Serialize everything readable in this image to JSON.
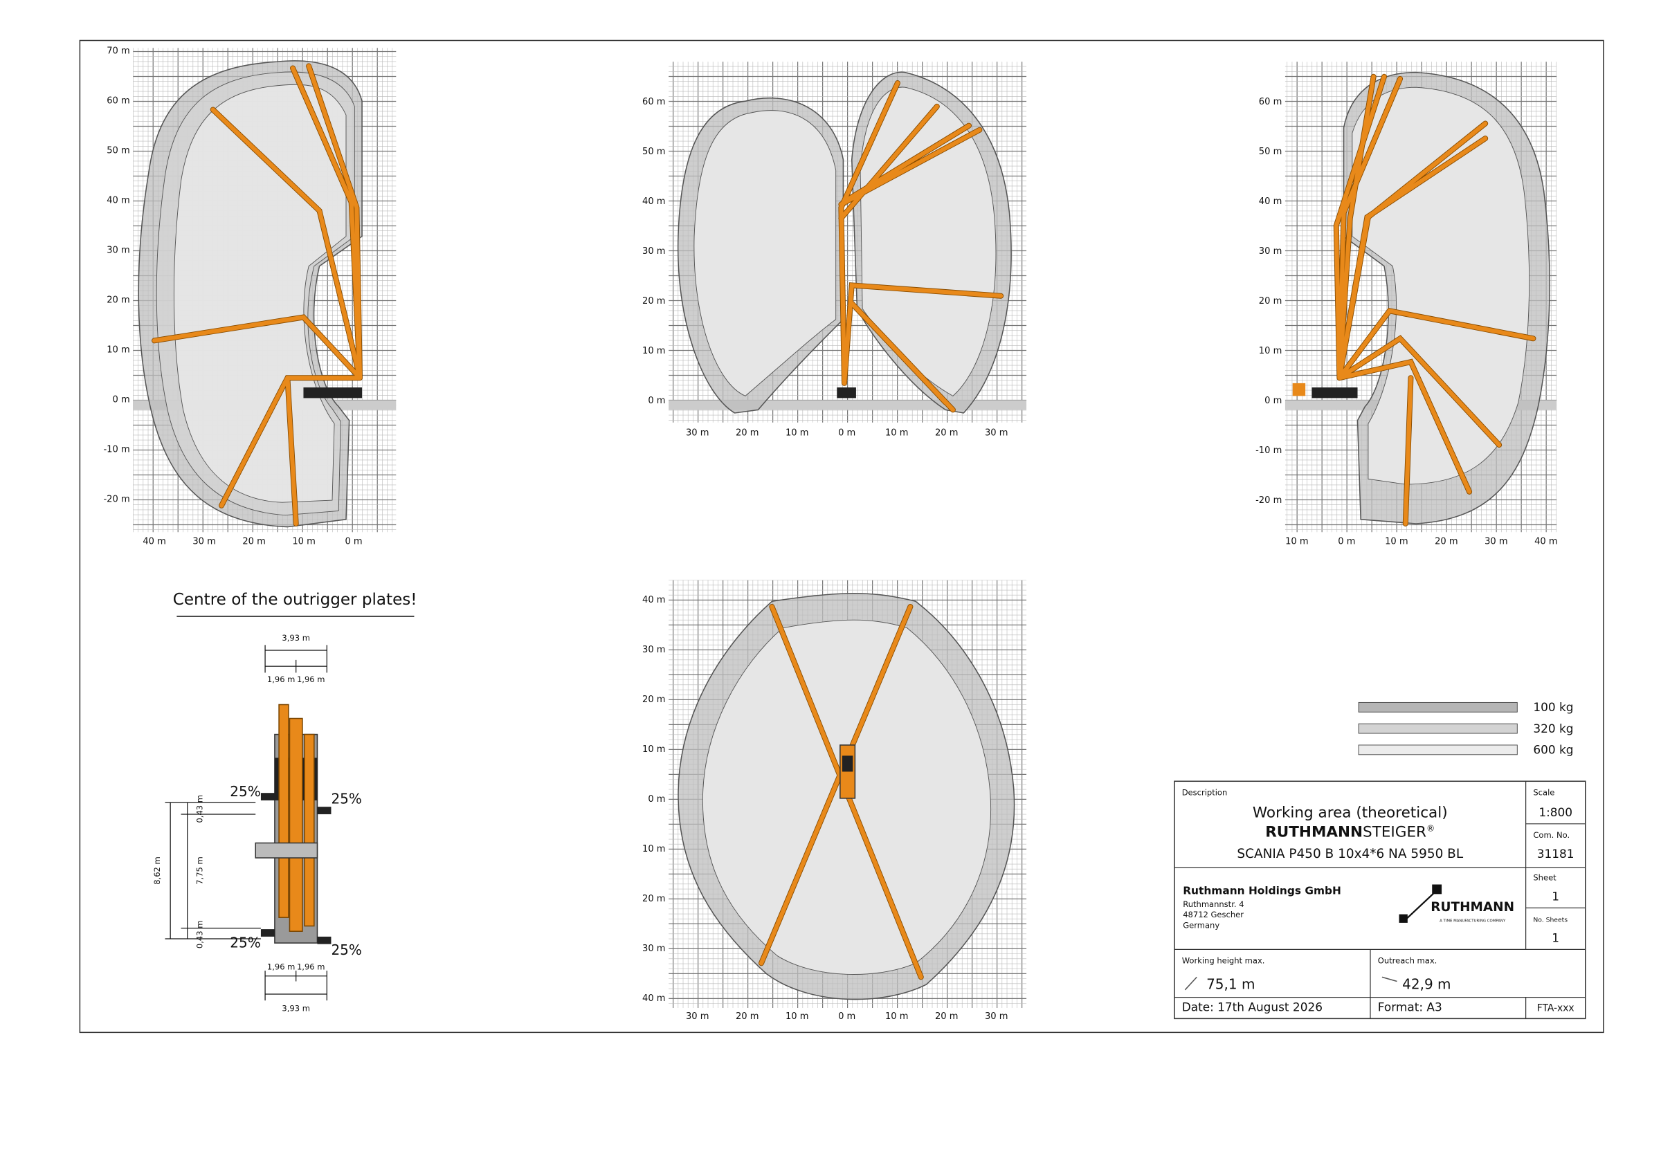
{
  "panels": [
    {
      "yticks": [
        "70 m",
        "60 m",
        "50 m",
        "40 m",
        "30 m",
        "20 m",
        "10 m",
        "0 m",
        "-10 m",
        "-20 m"
      ],
      "xticks": [
        "40 m",
        "30 m",
        "20 m",
        "10 m",
        "0 m"
      ]
    },
    {
      "yticks": [
        "60 m",
        "50 m",
        "40 m",
        "30 m",
        "20 m",
        "10 m",
        "0 m"
      ],
      "xticks": [
        "30 m",
        "20 m",
        "10 m",
        "0 m",
        "10 m",
        "20 m",
        "30 m"
      ]
    },
    {
      "yticks": [
        "60 m",
        "50 m",
        "40 m",
        "30 m",
        "20 m",
        "10 m",
        "0 m",
        "-10 m",
        "-20 m"
      ],
      "xticks": [
        "10 m",
        "0 m",
        "10 m",
        "20 m",
        "30 m",
        "40 m"
      ]
    },
    {
      "yticks": [
        "40 m",
        "30 m",
        "20 m",
        "10 m",
        "0 m",
        "10 m",
        "20 m",
        "30 m",
        "40 m"
      ],
      "xticks": [
        "30 m",
        "20 m",
        "10 m",
        "0 m",
        "10 m",
        "20 m",
        "30 m"
      ]
    }
  ],
  "outrigger": {
    "title": "Centre of the outrigger plates!",
    "top_total": "3,93 m",
    "top_left": "1,96 m",
    "top_right": "1,96 m",
    "left_total": "8,62 m",
    "left_top": "0,43 m",
    "left_mid": "7,75 m",
    "left_bottom": "0,43 m",
    "slopes": [
      "25%",
      "25%",
      "25%",
      "25%"
    ],
    "bottom_left": "1,96 m",
    "bottom_right": "1,96 m",
    "bottom_total": "3,93 m"
  },
  "legend": [
    "100 kg",
    "320 kg",
    "600 kg"
  ],
  "title_block": {
    "description_label": "Description",
    "description": "Working area (theoretical)",
    "brand_bold": "RUTHMANN",
    "brand": "STEIGER",
    "brand_reg": "®",
    "model": "SCANIA P450 B 10x4*6 NA 5950 BL",
    "scale_label": "Scale",
    "scale": "1:800",
    "com_label": "Com. No.",
    "com": "31181",
    "sheet_label": "Sheet",
    "sheet": "1",
    "sheets_label": "No. Sheets",
    "sheets": "1",
    "company": "Ruthmann Holdings GmbH",
    "street": "Ruthmannstr. 4",
    "city": "48712 Gescher",
    "country": "Germany",
    "logo": "RUTHMANN",
    "logo_sub": "A TIME MANUFACTURING COMPANY",
    "height_label": "Working height max.",
    "height": "75,1 m",
    "outreach_label": "Outreach max.",
    "outreach": "42,9 m",
    "date": "Date: 17th August 2026",
    "format": "Format: A3",
    "code": "FTA-xxx"
  }
}
